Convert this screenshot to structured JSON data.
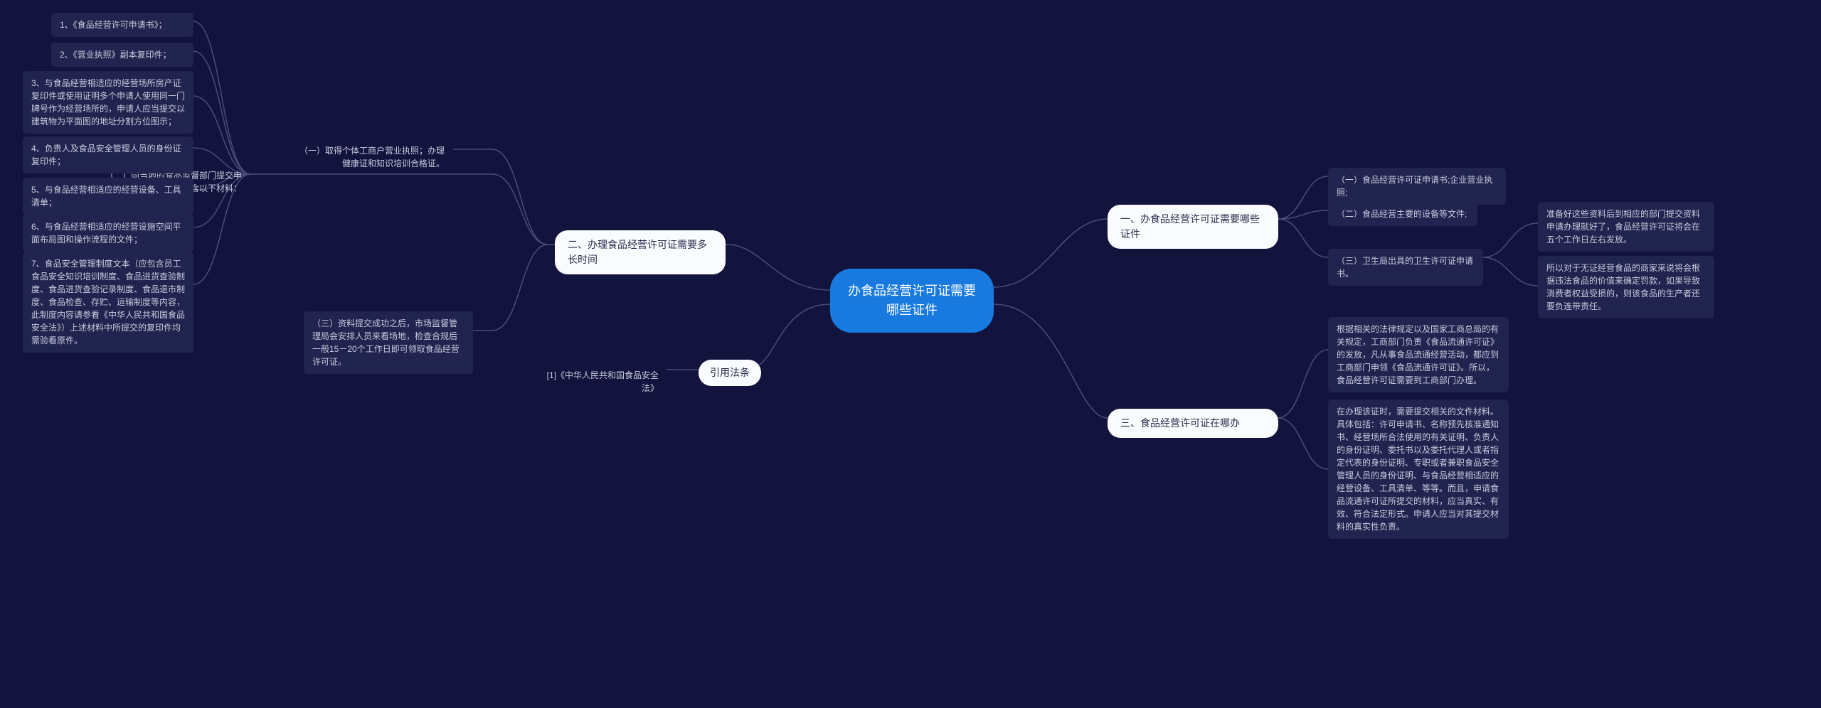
{
  "colors": {
    "background": "#13143d",
    "root_bg": "#1879de",
    "root_text": "#ffffff",
    "branch_bg": "#fafbfc",
    "branch_text": "#2a2c4e",
    "leaf_bg": "#21244e",
    "leaf_text": "#c9cbe0",
    "connector": "#4a4d7a"
  },
  "root": "办食品经营许可证需要哪些证件",
  "right": {
    "b1": {
      "label": "一、办食品经营许可证需要哪些证件",
      "children": {
        "c1": "（一）食品经营许可证申请书;企业营业执照;",
        "c2": "（二）食品经营主要的设备等文件;",
        "c3": "（三）卫生局出具的卫生许可证申请书。",
        "c3_notes": {
          "n1": "准备好这些资料后到相应的部门提交资料申请办理就好了，食品经营许可证将会在五个工作日左右发放。",
          "n2": "所以对于无证经营食品的商家来说将会根据违法食品的价值来确定罚款，如果导致消费者权益受损的，则该食品的生产者还要负连带责任。"
        }
      }
    },
    "b3": {
      "label": "三、食品经营许可证在哪办",
      "notes": {
        "n1": "根据相关的法律规定以及国家工商总局的有关规定，工商部门负责《食品流通许可证》的发放，凡从事食品流通经营活动，都应到工商部门申领《食品流通许可证》。所以，食品经营许可证需要到工商部门办理。",
        "n2": "在办理该证时，需要提交相关的文件材料。具体包括：许可申请书、名称预先核准通知书、经营场所合法使用的有关证明、负责人的身份证明、委托书以及委托代理人或者指定代表的身份证明、专职或者兼职食品安全管理人员的身份证明、与食品经营相适应的经营设备、工具清单、等等。而且，申请食品流通许可证所提交的材料，应当真实、有效、符合法定形式。申请人应当对其提交材料的真实性负责。"
      }
    }
  },
  "left": {
    "b2": {
      "label": "二、办理食品经营许可证需要多长时间",
      "children": {
        "c1": "（一）取得个体工商户营业执照；办理健康证和知识培训合格证。",
        "c2": {
          "label": "（二）向当地的食品监督部门提交申请，需要包含以下材料：",
          "items": {
            "i1": "1、《食品经营许可申请书》；",
            "i2": "2、《营业执照》副本复印件；",
            "i3": "3、与食品经营相适应的经营场所房产证复印件或使用证明多个申请人使用同一门牌号作为经营场所的，申请人应当提交以建筑物为平面图的地址分割方位图示；",
            "i4": "4、负责人及食品安全管理人员的身份证复印件；",
            "i5": "5、与食品经营相适应的经营设备、工具清单；",
            "i6": "6、与食品经营相适应的经营设施空间平面布局图和操作流程的文件；",
            "i7": "7、食品安全管理制度文本（应包含员工食品安全知识培训制度、食品进货查验制度、食品进货查验记录制度、食品退市制度、食品检查、存贮、运输制度等内容，此制度内容请参看《中华人民共和国食品安全法》）上述材料中所提交的复印件均需验看原件。"
          }
        },
        "c3": "（三）资料提交成功之后，市场监督管理局会安排人员来看场地，检查合规后一般15－20个工作日即可领取食品经营许可证。"
      }
    },
    "ref": {
      "label": "引用法条",
      "child": "[1]《中华人民共和国食品安全法》"
    }
  }
}
